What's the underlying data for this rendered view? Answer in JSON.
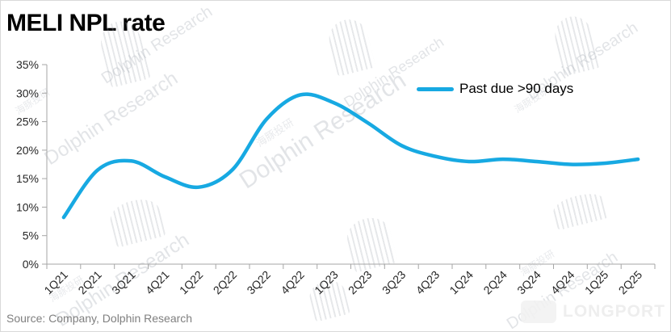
{
  "title": "MELI NPL rate",
  "source": "Source: Company, Dolphin Research",
  "legend": {
    "label": "Past due >90 days"
  },
  "watermark": {
    "brand": "Dolphin Research",
    "brand_cn": "海豚投研",
    "longport": "LONGPORT"
  },
  "colors": {
    "line": "#17a9e2",
    "axis": "#a6a6a6",
    "tick_label": "#262626",
    "source_text": "#7f7f7f"
  },
  "chart_data": {
    "type": "line",
    "title": "MELI NPL rate",
    "categories": [
      "1Q21",
      "2Q21",
      "3Q21",
      "4Q21",
      "1Q22",
      "2Q22",
      "3Q22",
      "4Q22",
      "1Q23",
      "2Q23",
      "3Q23",
      "4Q23",
      "1Q24",
      "2Q24",
      "3Q24",
      "4Q24",
      "1Q25",
      "2Q25"
    ],
    "series": [
      {
        "name": "Past due >90 days",
        "values": [
          8.2,
          16.5,
          18.1,
          15.3,
          13.5,
          16.6,
          25.4,
          29.7,
          28.3,
          24.8,
          20.8,
          18.9,
          18.0,
          18.4,
          18.0,
          17.5,
          17.7,
          18.4
        ]
      }
    ],
    "ylim": [
      0,
      35
    ],
    "ytick_step": 5,
    "ytick_labels": [
      "0%",
      "5%",
      "10%",
      "15%",
      "20%",
      "25%",
      "30%",
      "35%"
    ],
    "xlabel": "",
    "ylabel": "",
    "grid": false,
    "legend_position": "top-right",
    "line_smooth": true
  }
}
